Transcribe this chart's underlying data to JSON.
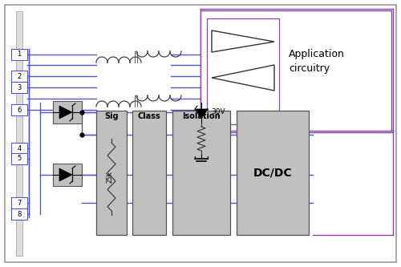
{
  "bg_color": "#ffffff",
  "border_color": "#888888",
  "blue": "#5555cc",
  "purple": "#8844aa",
  "lgray": "#c0c0c0",
  "dgray": "#888888",
  "pin_labels": [
    "1",
    "2",
    "3",
    "6",
    "4",
    "5",
    "7",
    "8"
  ],
  "block_labels": [
    "Sig",
    "Class",
    "Isolation",
    "DC/DC"
  ],
  "app_text1": "Application",
  "app_text2": "circuitry",
  "resistor_label": "25K",
  "zener_label": "30V"
}
